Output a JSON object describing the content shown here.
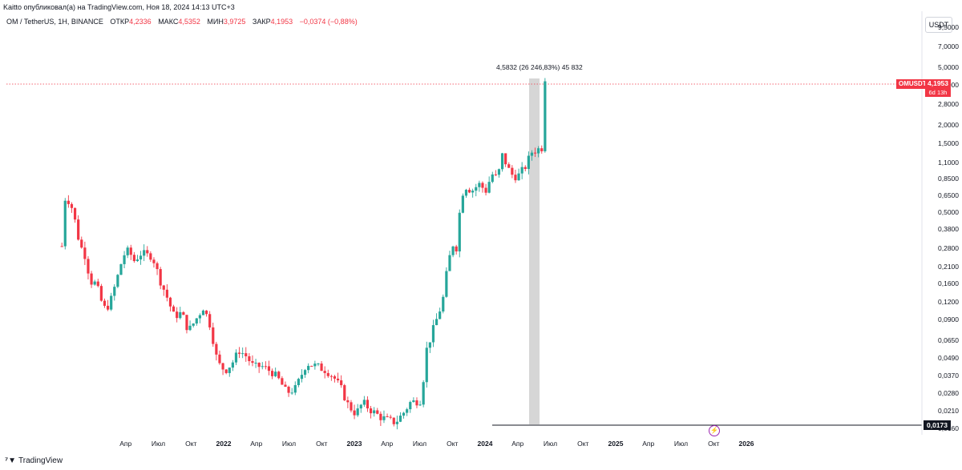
{
  "header": {
    "published": "Kaitto опубликовал(а) на TradingView.com, Ноя 18, 2024 14:13 UTC+3",
    "symbol": "OM / TetherUS, 1H, BINANCE",
    "open_label": "ОТКР",
    "open_value": "4,2336",
    "high_label": "МАКС",
    "high_value": "4,5352",
    "low_label": "МИН",
    "low_value": "3,9725",
    "close_label": "ЗАКР",
    "close_value": "4,1953",
    "change_value": "−0,0374 (−0,88%)"
  },
  "currency_button": "USDT",
  "price_axis": {
    "ticks": [
      "9,5000",
      "7,0000",
      "5,0000",
      "3,8000",
      "2,8000",
      "2,0000",
      "1,5000",
      "1,1000",
      "0,8500",
      "0,6500",
      "0,5000",
      "0,3800",
      "0,2800",
      "0,2100",
      "0,1600",
      "0,1200",
      "0,0900",
      "0,0650",
      "0,0490",
      "0,0370",
      "0,0280",
      "0,0210",
      "0,0160"
    ]
  },
  "time_axis": {
    "labels": [
      "Апр",
      "Июл",
      "Окт",
      "2022",
      "Апр",
      "Июл",
      "Окт",
      "2023",
      "Апр",
      "Июл",
      "Окт",
      "2024",
      "Апр",
      "Июл",
      "Окт",
      "2025",
      "Апр",
      "Июл",
      "Окт",
      "2026"
    ]
  },
  "last_price": {
    "symbol": "OMUSDT",
    "value": "4,1953",
    "countdown": "6d 13h"
  },
  "low_marker": "0,0173",
  "measure_label": "4,5832 (26 246,83%) 45 832",
  "brand": "TradingView",
  "colors": {
    "up": "#26a69a",
    "down": "#f23645"
  },
  "chart_data": {
    "type": "candlestick",
    "y_scale": "log",
    "title": "OM / TetherUS, 1H, BINANCE",
    "y_range": [
      0.0155,
      9.5
    ],
    "x_range": [
      "2021-02",
      "2026-03"
    ],
    "last_close": 4.1953,
    "low_marker_value": 0.0173,
    "measure_high": 4.5832,
    "path": [
      [
        "2021-03-01",
        0.29
      ],
      [
        "2021-03-05",
        0.75
      ],
      [
        "2021-03-10",
        0.62
      ],
      [
        "2021-03-20",
        0.6
      ],
      [
        "2021-04-01",
        0.52
      ],
      [
        "2021-04-10",
        0.4
      ],
      [
        "2021-04-20",
        0.3
      ],
      [
        "2021-05-05",
        0.25
      ],
      [
        "2021-05-20",
        0.165
      ],
      [
        "2021-06-05",
        0.16
      ],
      [
        "2021-06-20",
        0.12
      ],
      [
        "2021-07-01",
        0.105
      ],
      [
        "2021-07-15",
        0.12
      ],
      [
        "2021-08-05",
        0.18
      ],
      [
        "2021-08-20",
        0.25
      ],
      [
        "2021-09-05",
        0.27
      ],
      [
        "2021-09-20",
        0.23
      ],
      [
        "2021-10-10",
        0.26
      ],
      [
        "2021-10-25",
        0.25
      ],
      [
        "2021-11-10",
        0.25
      ],
      [
        "2021-12-01",
        0.17
      ],
      [
        "2021-12-20",
        0.13
      ],
      [
        "2022-01-10",
        0.095
      ],
      [
        "2022-02-01",
        0.1
      ],
      [
        "2022-02-20",
        0.075
      ],
      [
        "2022-03-10",
        0.09
      ],
      [
        "2022-04-01",
        0.11
      ],
      [
        "2022-04-20",
        0.082
      ],
      [
        "2022-05-10",
        0.045
      ],
      [
        "2022-06-01",
        0.04
      ],
      [
        "2022-06-20",
        0.045
      ],
      [
        "2022-07-10",
        0.055
      ],
      [
        "2022-07-30",
        0.05
      ],
      [
        "2022-08-20",
        0.042
      ],
      [
        "2022-09-10",
        0.043
      ],
      [
        "2022-10-10",
        0.039
      ],
      [
        "2022-11-01",
        0.034
      ],
      [
        "2022-11-20",
        0.028
      ],
      [
        "2022-12-15",
        0.03
      ],
      [
        "2023-01-15",
        0.045
      ],
      [
        "2023-02-10",
        0.043
      ],
      [
        "2023-03-10",
        0.04
      ],
      [
        "2023-03-30",
        0.036
      ],
      [
        "2023-04-20",
        0.03
      ],
      [
        "2023-05-10",
        0.023
      ],
      [
        "2023-06-01",
        0.02
      ],
      [
        "2023-06-20",
        0.024
      ],
      [
        "2023-07-15",
        0.021
      ],
      [
        "2023-08-10",
        0.019
      ],
      [
        "2023-09-01",
        0.018
      ],
      [
        "2023-09-20",
        0.0175
      ],
      [
        "2023-10-10",
        0.02
      ],
      [
        "2023-11-01",
        0.024
      ],
      [
        "2023-12-01",
        0.025
      ],
      [
        "2023-12-15",
        0.055
      ],
      [
        "2024-01-10",
        0.085
      ],
      [
        "2024-01-30",
        0.12
      ],
      [
        "2024-02-15",
        0.22
      ],
      [
        "2024-02-28",
        0.3
      ],
      [
        "2024-03-10",
        0.28
      ],
      [
        "2024-03-20",
        0.65
      ],
      [
        "2024-04-05",
        0.75
      ],
      [
        "2024-04-20",
        0.7
      ],
      [
        "2024-05-10",
        0.78
      ],
      [
        "2024-05-30",
        0.7
      ],
      [
        "2024-06-15",
        0.92
      ],
      [
        "2024-07-01",
        0.85
      ],
      [
        "2024-07-15",
        1.25
      ],
      [
        "2024-07-30",
        1.0
      ],
      [
        "2024-08-15",
        0.88
      ],
      [
        "2024-09-01",
        0.9
      ],
      [
        "2024-09-20",
        1.05
      ],
      [
        "2024-10-05",
        1.3
      ],
      [
        "2024-10-20",
        1.35
      ],
      [
        "2024-11-05",
        1.4
      ],
      [
        "2024-11-12",
        4.25
      ],
      [
        "2024-11-18",
        4.2
      ]
    ]
  }
}
